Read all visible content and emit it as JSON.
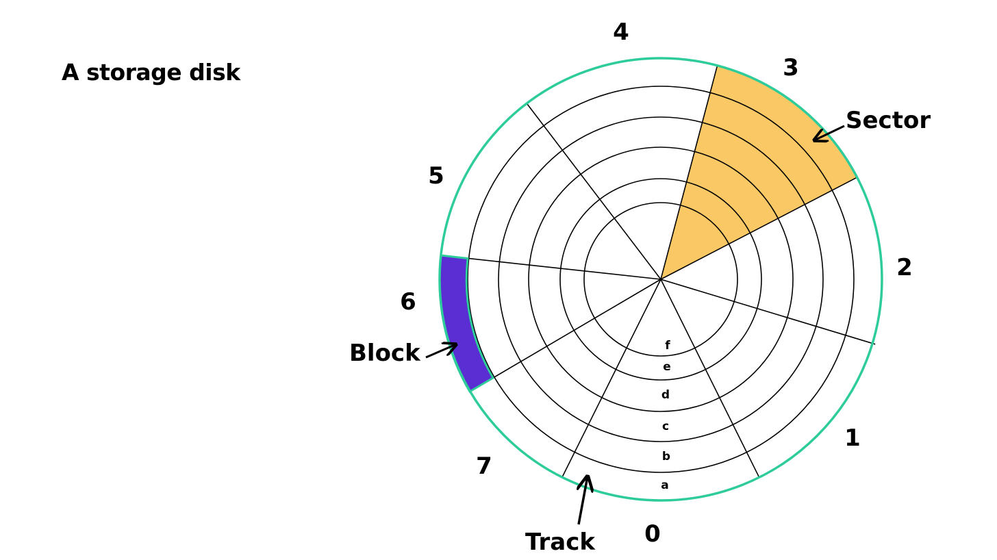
{
  "title": "A storage disk",
  "sector_numbers": [
    "0",
    "1",
    "2",
    "3",
    "4",
    "5",
    "6",
    "7"
  ],
  "track_letters": [
    "a",
    "b",
    "c",
    "d",
    "e",
    "f"
  ],
  "callouts": {
    "sector": "Sector",
    "block": "Block",
    "track": "Track"
  },
  "colors": {
    "rim": "#2ECC9A",
    "sector_fill": "#FAC864",
    "block_fill": "#5A2ED2",
    "lines": "#000000"
  }
}
